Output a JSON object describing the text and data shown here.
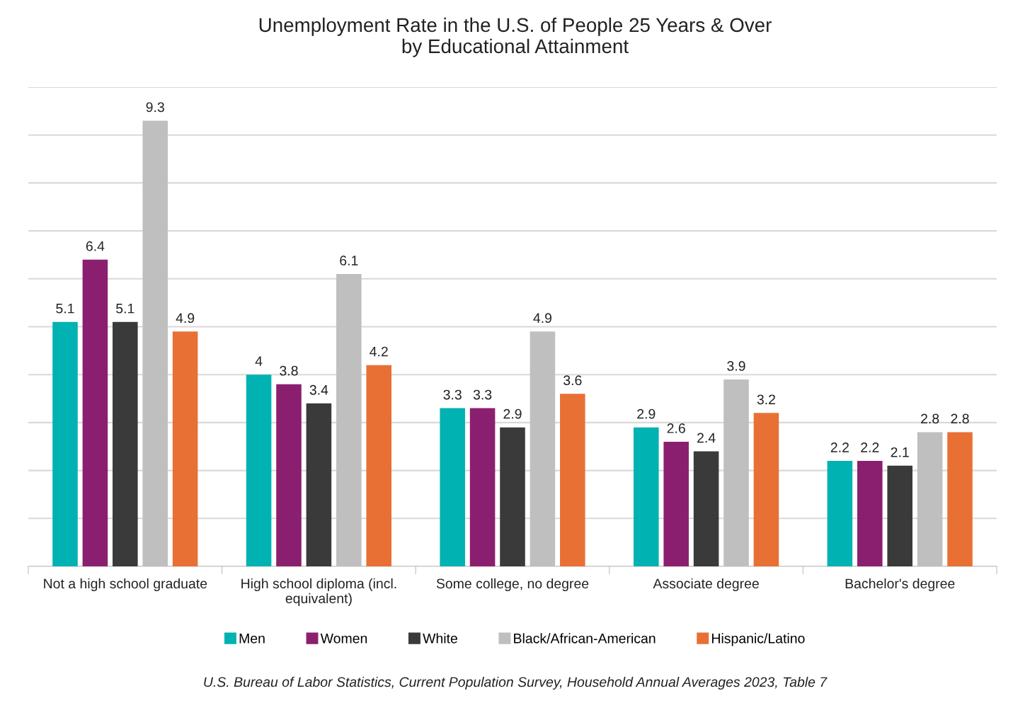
{
  "chart_data": {
    "type": "bar",
    "title": "Unemployment Rate in the U.S. of People 25 Years & Over\nby Educational Attainment",
    "categories": [
      "Not a high school graduate",
      "High school diploma (incl. equivalent)",
      "Some college, no degree",
      "Associate degree",
      "Bachelor's degree"
    ],
    "series": [
      {
        "name": "Men",
        "color": "#00b2b2",
        "values": [
          5.1,
          4,
          3.3,
          2.9,
          2.2
        ]
      },
      {
        "name": "Women",
        "color": "#8b1f6f",
        "values": [
          6.4,
          3.8,
          3.3,
          2.6,
          2.2
        ]
      },
      {
        "name": "White",
        "color": "#3a3a3a",
        "values": [
          5.1,
          3.4,
          2.9,
          2.4,
          2.1
        ]
      },
      {
        "name": "Black/African-American",
        "color": "#bfbfbf",
        "values": [
          9.3,
          6.1,
          4.9,
          3.9,
          2.8
        ]
      },
      {
        "name": "Hispanic/Latino",
        "color": "#e87035",
        "values": [
          4.9,
          4.2,
          3.6,
          3.2,
          2.8
        ]
      }
    ],
    "ylim": [
      0,
      10
    ],
    "yticks": [
      {
        "value": 0,
        "label": null
      },
      {
        "value": 1,
        "label": null
      },
      {
        "value": 2,
        "label": null
      },
      {
        "value": 3,
        "label": null
      },
      {
        "value": 4,
        "label": null
      },
      {
        "value": 5,
        "label": null
      },
      {
        "value": 6,
        "label": null
      },
      {
        "value": 7,
        "label": null
      },
      {
        "value": 8,
        "label": null
      },
      {
        "value": 9,
        "label": null
      },
      {
        "value": 10,
        "label": null
      }
    ],
    "tick_labels": "x",
    "grid": "y",
    "legend": "bottom",
    "data_labels": true,
    "annotations": [
      "U.S. Bureau of Labor Statistics, Current Population Survey, Household Annual Averages 2023, Table 7"
    ]
  }
}
